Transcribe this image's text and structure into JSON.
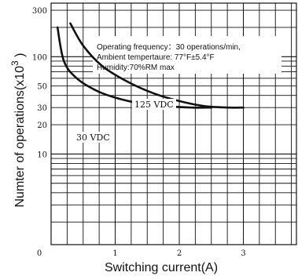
{
  "chart_data": {
    "type": "line",
    "xlabel": "Switching current(A)",
    "ylabel_main": "Numter of operations(x10",
    "ylabel_exp": "3",
    "ylabel_tail": " )",
    "x_scale": "linear",
    "y_scale": "log",
    "xlim": [
      0,
      4
    ],
    "ylim": [
      1,
      600
    ],
    "x_ticks": [
      "0",
      "1",
      "2",
      "3"
    ],
    "y_ticks": [
      "300",
      "100",
      "50",
      "30",
      "20",
      "10"
    ],
    "grid": true,
    "annotation": [
      "Operating  frequency：30 operations/min,",
      "Ambient tempertaure: 77°F±5.4°F",
      "Humidity:70%RM max"
    ],
    "series": [
      {
        "name": "125  VDC",
        "x": [
          0.3,
          0.5,
          0.8,
          1.2,
          1.6,
          2.0,
          2.4,
          2.8,
          3.0
        ],
        "y": [
          220,
          130,
          80,
          55,
          42,
          35,
          31,
          30,
          30
        ]
      },
      {
        "name": "30  VDC",
        "x": [
          0.1,
          0.2,
          0.4,
          0.7,
          1.0,
          1.4,
          1.8,
          2.2,
          2.5
        ],
        "y": [
          200,
          90,
          60,
          45,
          38,
          33,
          31,
          30,
          30
        ]
      }
    ]
  }
}
